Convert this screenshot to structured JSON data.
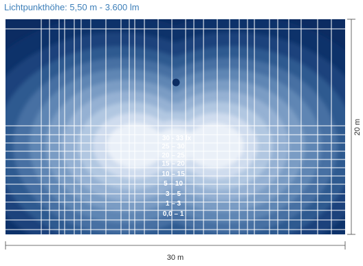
{
  "title": "Lichtpunkthöhe: 5,50 m - 3.600 lm",
  "colors": {
    "title": "#3d7fb9",
    "background_dark": "#0c2c62",
    "grid": "#ffffff",
    "marker": "#0c2c62",
    "contour_ramp": [
      "#10316b",
      "#1b437c",
      "#2d5a90",
      "#4670a3",
      "#5f86b4",
      "#7a9cc4",
      "#95b1d3",
      "#b1c7e1",
      "#cfdcee",
      "#eaf0f8"
    ]
  },
  "legend": [
    {
      "label": "30 - 33 lx"
    },
    {
      "label": "25 – 30"
    },
    {
      "label": "20 – 25"
    },
    {
      "label": "15 – 20"
    },
    {
      "label": "10 – 15"
    },
    {
      "label": "5 – 10"
    },
    {
      "label": "3 – 5"
    },
    {
      "label": "1 – 3"
    },
    {
      "label": "0,0 – 1"
    }
  ],
  "dimensions": {
    "width_label": "30 m",
    "height_label": "20 m"
  },
  "light_point_icon": "filled-circle-marker"
}
